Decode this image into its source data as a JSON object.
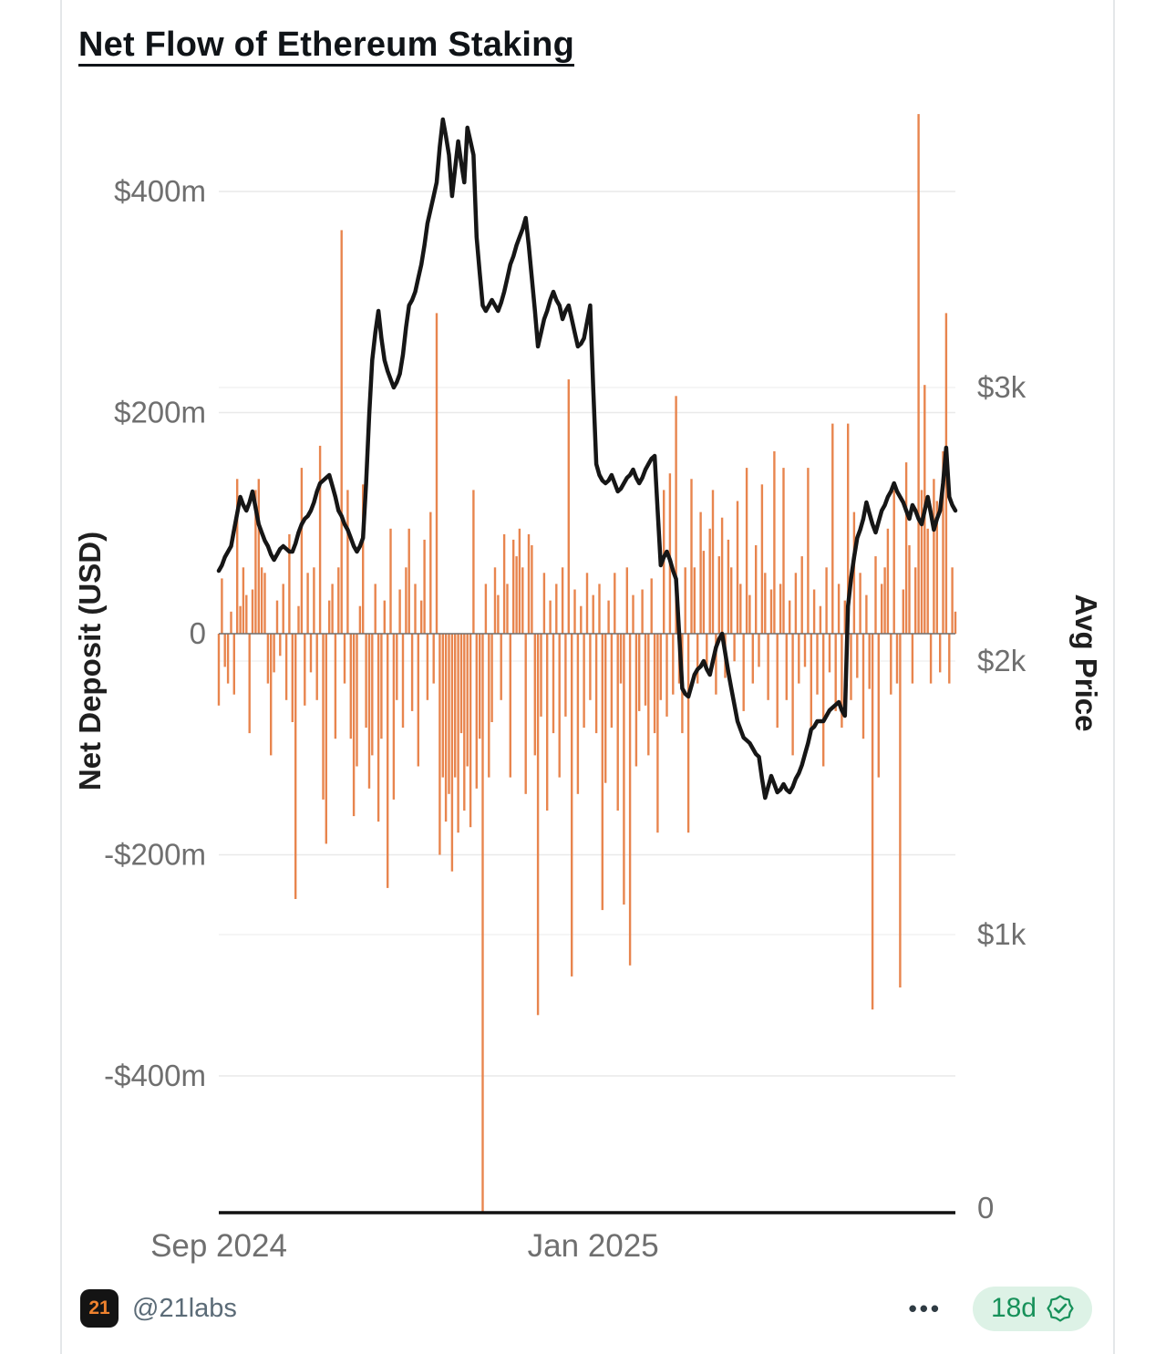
{
  "chart": {
    "title": "Net Flow of Ethereum Staking"
  },
  "footer": {
    "logo_text": "21",
    "handle": "@21labs",
    "more_label": "•••",
    "age": "18d"
  },
  "icons": {
    "logo": "21labs-logo",
    "more": "more-dots-icon",
    "seal": "verified-seal-icon"
  },
  "colors": {
    "bar_orange": "#e8854e",
    "price_line": "#161616",
    "grid": "#e9e9e9",
    "tick_text": "#6f6f6f",
    "badge_green": "#17915a",
    "badge_bg": "#ddf2e6"
  },
  "chart_data": {
    "type": "bar",
    "combo": "bar+line dual axis",
    "title": "Net Flow of Ethereum Staking",
    "x_ticks": [
      {
        "index": 0,
        "label": "Sep 2024"
      },
      {
        "index": 122,
        "label": "Jan 2025"
      }
    ],
    "left_axis": {
      "label": "Net Deposit (USD)",
      "ticks": [
        "$400m",
        "$200m",
        "0",
        "-$200m",
        "-$400m"
      ],
      "tick_values": [
        400,
        200,
        0,
        -200,
        -400
      ],
      "range": [
        -540,
        500
      ],
      "unit": "$ millions"
    },
    "right_axis": {
      "label": "Avg Price",
      "ticks": [
        "$3k",
        "$2k",
        "$1k",
        "0"
      ],
      "tick_values": [
        3,
        2,
        1,
        0
      ],
      "range": [
        0,
        4.2
      ],
      "unit": "$ thousands"
    },
    "series": [
      {
        "name": "Net Deposit (USD)",
        "type": "bar",
        "axis": "left",
        "color": "#e8854e",
        "values": [
          -65,
          50,
          -30,
          -45,
          20,
          -55,
          140,
          25,
          60,
          35,
          -90,
          40,
          130,
          140,
          60,
          55,
          -45,
          -110,
          -35,
          30,
          -20,
          45,
          -60,
          90,
          -80,
          -240,
          25,
          150,
          -65,
          55,
          -35,
          60,
          -60,
          170,
          -150,
          -190,
          30,
          45,
          -95,
          60,
          365,
          -45,
          130,
          -95,
          -165,
          -120,
          25,
          135,
          -85,
          -140,
          -110,
          45,
          -170,
          -95,
          30,
          -230,
          95,
          -150,
          -60,
          40,
          -85,
          60,
          95,
          -70,
          45,
          -120,
          30,
          85,
          -60,
          110,
          -45,
          290,
          -200,
          -130,
          -170,
          -145,
          -215,
          -130,
          -180,
          -90,
          -160,
          -120,
          -175,
          130,
          -140,
          -95,
          -530,
          45,
          -130,
          -80,
          60,
          35,
          -60,
          90,
          45,
          -130,
          85,
          70,
          95,
          60,
          -145,
          90,
          80,
          -110,
          -345,
          -75,
          55,
          -160,
          30,
          -90,
          45,
          -130,
          60,
          -75,
          230,
          -310,
          40,
          -145,
          25,
          -85,
          55,
          -60,
          35,
          -90,
          45,
          -250,
          -135,
          30,
          -85,
          55,
          -160,
          -45,
          -245,
          60,
          -300,
          35,
          -120,
          -70,
          40,
          -65,
          -110,
          50,
          -90,
          -180,
          -60,
          130,
          -75,
          145,
          -55,
          215,
          -45,
          -90,
          60,
          -180,
          140,
          60,
          -45,
          110,
          75,
          -30,
          95,
          130,
          -55,
          70,
          105,
          -40,
          85,
          60,
          -25,
          120,
          45,
          -70,
          150,
          35,
          -45,
          80,
          -30,
          135,
          55,
          -60,
          40,
          165,
          -85,
          45,
          150,
          -60,
          30,
          -110,
          55,
          -45,
          70,
          -30,
          150,
          -90,
          40,
          -55,
          25,
          -120,
          60,
          -35,
          190,
          -70,
          45,
          -85,
          30,
          190,
          -60,
          110,
          -40,
          55,
          -95,
          35,
          -50,
          -340,
          70,
          -130,
          45,
          60,
          95,
          -55,
          130,
          -45,
          -320,
          40,
          155,
          80,
          -45,
          60,
          470,
          130,
          225,
          95,
          -45,
          140,
          120,
          -35,
          165,
          290,
          -45,
          60,
          20
        ]
      },
      {
        "name": "Avg Price",
        "type": "line",
        "axis": "right",
        "color": "#161616",
        "values": [
          2.33,
          2.35,
          2.38,
          2.4,
          2.42,
          2.48,
          2.54,
          2.6,
          2.57,
          2.55,
          2.58,
          2.62,
          2.56,
          2.5,
          2.47,
          2.44,
          2.42,
          2.39,
          2.37,
          2.39,
          2.41,
          2.42,
          2.41,
          2.4,
          2.4,
          2.43,
          2.47,
          2.5,
          2.52,
          2.53,
          2.55,
          2.58,
          2.62,
          2.65,
          2.66,
          2.67,
          2.68,
          2.64,
          2.6,
          2.55,
          2.53,
          2.5,
          2.48,
          2.45,
          2.42,
          2.4,
          2.42,
          2.45,
          2.65,
          2.9,
          3.1,
          3.2,
          3.28,
          3.18,
          3.1,
          3.06,
          3.03,
          3.0,
          3.02,
          3.05,
          3.12,
          3.22,
          3.3,
          3.32,
          3.35,
          3.4,
          3.45,
          3.52,
          3.6,
          3.65,
          3.7,
          3.75,
          3.88,
          3.98,
          3.92,
          3.85,
          3.7,
          3.8,
          3.9,
          3.82,
          3.75,
          3.95,
          3.9,
          3.85,
          3.55,
          3.42,
          3.3,
          3.28,
          3.3,
          3.32,
          3.3,
          3.28,
          3.31,
          3.35,
          3.4,
          3.45,
          3.48,
          3.52,
          3.55,
          3.58,
          3.62,
          3.52,
          3.4,
          3.28,
          3.15,
          3.2,
          3.25,
          3.28,
          3.32,
          3.35,
          3.32,
          3.3,
          3.25,
          3.28,
          3.3,
          3.25,
          3.2,
          3.15,
          3.16,
          3.18,
          3.24,
          3.3,
          3.0,
          2.72,
          2.68,
          2.66,
          2.65,
          2.66,
          2.68,
          2.65,
          2.62,
          2.63,
          2.65,
          2.67,
          2.68,
          2.7,
          2.67,
          2.65,
          2.67,
          2.7,
          2.72,
          2.74,
          2.75,
          2.55,
          2.35,
          2.38,
          2.4,
          2.37,
          2.33,
          2.3,
          2.1,
          1.9,
          1.88,
          1.87,
          1.91,
          1.95,
          1.97,
          1.98,
          2.0,
          1.97,
          1.95,
          2.0,
          2.05,
          2.08,
          2.1,
          2.03,
          1.96,
          1.9,
          1.84,
          1.78,
          1.75,
          1.72,
          1.71,
          1.7,
          1.68,
          1.66,
          1.65,
          1.57,
          1.5,
          1.54,
          1.58,
          1.55,
          1.52,
          1.53,
          1.55,
          1.53,
          1.52,
          1.54,
          1.57,
          1.59,
          1.62,
          1.66,
          1.7,
          1.75,
          1.76,
          1.78,
          1.78,
          1.78,
          1.8,
          1.82,
          1.83,
          1.84,
          1.85,
          1.82,
          1.8,
          2.2,
          2.3,
          2.38,
          2.45,
          2.48,
          2.52,
          2.58,
          2.54,
          2.5,
          2.47,
          2.51,
          2.55,
          2.57,
          2.6,
          2.62,
          2.65,
          2.62,
          2.6,
          2.58,
          2.55,
          2.52,
          2.57,
          2.55,
          2.52,
          2.5,
          2.55,
          2.6,
          2.54,
          2.48,
          2.52,
          2.55,
          2.65,
          2.78,
          2.6,
          2.57,
          2.55
        ]
      }
    ]
  }
}
